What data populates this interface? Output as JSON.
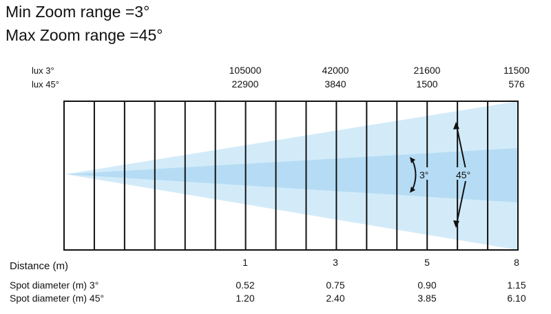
{
  "titles": {
    "min_zoom": "Min Zoom range =3°",
    "max_zoom": "Max Zoom range =45°"
  },
  "row_labels": {
    "lux_3": "lux 3°",
    "lux_45": "lux 45°",
    "distance": "Distance (m)",
    "spot_3": "Spot diameter (m) 3°",
    "spot_45": "Spot diameter (m) 45°"
  },
  "columns": [
    {
      "lux_3": "105000",
      "lux_45": "22900",
      "distance": "1",
      "spot_3": "0.52",
      "spot_45": "1.20"
    },
    {
      "lux_3": "42000",
      "lux_45": "3840",
      "distance": "3",
      "spot_3": "0.75",
      "spot_45": "2.40"
    },
    {
      "lux_3": "21600",
      "lux_45": "1500",
      "distance": "5",
      "spot_3": "0.90",
      "spot_45": "3.85"
    },
    {
      "lux_3": "11500",
      "lux_45": "576",
      "distance": "8",
      "spot_3": "1.15",
      "spot_45": "6.10"
    }
  ],
  "beam": {
    "narrow_angle_label": "3°",
    "wide_angle_label": "45°",
    "narrow_color": "#b5dcf4",
    "wide_color": "#d3ebf9"
  },
  "grid": {
    "cell_count": 15,
    "line_color": "#111111"
  }
}
